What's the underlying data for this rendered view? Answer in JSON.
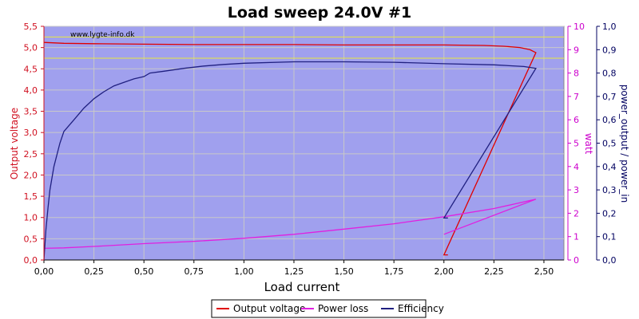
{
  "chart_data": {
    "type": "line",
    "title": "Load sweep 24.0V #1",
    "watermark": "www.lygte-info.dk",
    "xlabel": "Load current",
    "xlim": [
      0,
      2.6
    ],
    "x_ticks": [
      "0,00",
      "0,25",
      "0,50",
      "0,75",
      "1,00",
      "1,25",
      "1,50",
      "1,75",
      "2,00",
      "2,25",
      "2,50"
    ],
    "x_tick_values": [
      0,
      0.25,
      0.5,
      0.75,
      1.0,
      1.25,
      1.5,
      1.75,
      2.0,
      2.25,
      2.5
    ],
    "y_left": {
      "label": "Output voltage",
      "color": "#d01020",
      "lim": [
        0,
        5.5
      ],
      "ticks": [
        "0,0",
        "0,5",
        "1,0",
        "1,5",
        "2,0",
        "2,5",
        "3,0",
        "3,5",
        "4,0",
        "4,5",
        "5,0",
        "5,5"
      ],
      "tick_values": [
        0,
        0.5,
        1.0,
        1.5,
        2.0,
        2.5,
        3.0,
        3.5,
        4.0,
        4.5,
        5.0,
        5.5
      ]
    },
    "y_watt": {
      "label": "watt",
      "color": "#cc00cc",
      "lim": [
        0,
        10
      ],
      "ticks": [
        "0",
        "1",
        "2",
        "3",
        "4",
        "5",
        "6",
        "7",
        "8",
        "9",
        "10"
      ],
      "tick_values": [
        0,
        1,
        2,
        3,
        4,
        5,
        6,
        7,
        8,
        9,
        10
      ]
    },
    "y_eff": {
      "label": "power_output / power_in",
      "color": "#000060",
      "lim": [
        0,
        1.0
      ],
      "ticks": [
        "0,0",
        "0,1",
        "0,2",
        "0,3",
        "0,4",
        "0,5",
        "0,6",
        "0,7",
        "0,8",
        "0,9",
        "1,0"
      ],
      "tick_values": [
        0,
        0.1,
        0.2,
        0.3,
        0.4,
        0.5,
        0.6,
        0.7,
        0.8,
        0.9,
        1.0
      ]
    },
    "reference_lines_voltage": [
      5.25,
      4.75
    ],
    "series": [
      {
        "name": "Output voltage",
        "axis": "left",
        "color": "#e00000",
        "points": [
          [
            0,
            5.12
          ],
          [
            0.1,
            5.1
          ],
          [
            0.25,
            5.09
          ],
          [
            0.5,
            5.08
          ],
          [
            0.75,
            5.07
          ],
          [
            1.0,
            5.07
          ],
          [
            1.25,
            5.07
          ],
          [
            1.5,
            5.06
          ],
          [
            1.75,
            5.06
          ],
          [
            2.0,
            5.06
          ],
          [
            2.2,
            5.05
          ],
          [
            2.3,
            5.03
          ],
          [
            2.38,
            5.0
          ],
          [
            2.43,
            4.95
          ],
          [
            2.46,
            4.88
          ],
          [
            2.0,
            0.12
          ],
          [
            2.02,
            0.12
          ]
        ]
      },
      {
        "name": "Power loss",
        "axis": "watt",
        "color": "#e020e0",
        "points": [
          [
            0,
            0.5
          ],
          [
            0.1,
            0.52
          ],
          [
            0.25,
            0.58
          ],
          [
            0.5,
            0.7
          ],
          [
            0.75,
            0.8
          ],
          [
            1.0,
            0.93
          ],
          [
            1.25,
            1.1
          ],
          [
            1.5,
            1.32
          ],
          [
            1.75,
            1.55
          ],
          [
            2.0,
            1.85
          ],
          [
            2.25,
            2.2
          ],
          [
            2.46,
            2.6
          ],
          [
            2.0,
            1.1
          ]
        ]
      },
      {
        "name": "Efficiency",
        "axis": "eff",
        "color": "#202080",
        "points": [
          [
            0,
            0.0
          ],
          [
            0.01,
            0.13
          ],
          [
            0.02,
            0.22
          ],
          [
            0.03,
            0.3
          ],
          [
            0.05,
            0.4
          ],
          [
            0.08,
            0.5
          ],
          [
            0.1,
            0.55
          ],
          [
            0.15,
            0.6
          ],
          [
            0.2,
            0.65
          ],
          [
            0.25,
            0.69
          ],
          [
            0.3,
            0.72
          ],
          [
            0.35,
            0.745
          ],
          [
            0.4,
            0.76
          ],
          [
            0.45,
            0.775
          ],
          [
            0.5,
            0.785
          ],
          [
            0.53,
            0.8
          ],
          [
            0.6,
            0.808
          ],
          [
            0.7,
            0.82
          ],
          [
            0.8,
            0.83
          ],
          [
            0.9,
            0.837
          ],
          [
            1.0,
            0.842
          ],
          [
            1.25,
            0.848
          ],
          [
            1.5,
            0.848
          ],
          [
            1.75,
            0.846
          ],
          [
            2.0,
            0.84
          ],
          [
            2.25,
            0.835
          ],
          [
            2.4,
            0.828
          ],
          [
            2.46,
            0.82
          ],
          [
            2.0,
            0.18
          ],
          [
            2.02,
            0.18
          ]
        ]
      }
    ],
    "legend": {
      "placement": "bottom-center",
      "entries": [
        "Output voltage",
        "Power loss",
        "Efficiency"
      ]
    },
    "grid": true,
    "plot_background": "#a0a0ee",
    "grid_color": "#c8c8c8"
  }
}
